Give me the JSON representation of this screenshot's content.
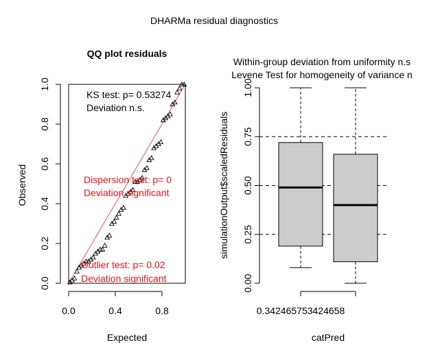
{
  "figure_title": "DHARMa residual diagnostics",
  "colors": {
    "ref_line": "#e0505a",
    "annotation": "#e8151b",
    "box_fill": "#cccccc",
    "text": "#000000"
  },
  "chart_data": [
    {
      "type": "scatter",
      "title": "QQ plot residuals",
      "xlabel": "Expected",
      "ylabel": "Observed",
      "xlim": [
        0,
        1
      ],
      "ylim": [
        0,
        1
      ],
      "x_ticks": [
        "0.0",
        "0.4",
        "0.8"
      ],
      "x_tick_values": [
        0.0,
        0.4,
        0.8
      ],
      "y_ticks": [
        "0.0",
        "0.2",
        "0.4",
        "0.6",
        "0.8",
        "1.0"
      ],
      "y_tick_values": [
        0.0,
        0.2,
        0.4,
        0.6,
        0.8,
        1.0
      ],
      "marker": "open-triangle",
      "reference_line": {
        "from": [
          0,
          0
        ],
        "to": [
          1,
          1
        ]
      },
      "annotations": [
        {
          "lines": [
            "KS test: p= 0.53274",
            "Deviation  n.s."
          ],
          "color": "black"
        },
        {
          "lines": [
            "Dispersion test: p= 0",
            "Deviation  significant"
          ],
          "color": "red"
        },
        {
          "lines": [
            "Outlier test: p= 0.02",
            "Deviation  significant"
          ],
          "color": "red"
        }
      ],
      "x": [
        0.01,
        0.03,
        0.05,
        0.07,
        0.09,
        0.11,
        0.13,
        0.15,
        0.17,
        0.19,
        0.21,
        0.23,
        0.25,
        0.27,
        0.29,
        0.31,
        0.33,
        0.35,
        0.37,
        0.39,
        0.41,
        0.43,
        0.45,
        0.47,
        0.49,
        0.51,
        0.53,
        0.55,
        0.57,
        0.59,
        0.61,
        0.63,
        0.65,
        0.67,
        0.69,
        0.71,
        0.73,
        0.75,
        0.77,
        0.79,
        0.81,
        0.83,
        0.85,
        0.87,
        0.89,
        0.91,
        0.93,
        0.95,
        0.97,
        0.99
      ],
      "y": [
        0.005,
        0.015,
        0.025,
        0.06,
        0.08,
        0.09,
        0.1,
        0.11,
        0.11,
        0.12,
        0.13,
        0.15,
        0.16,
        0.17,
        0.17,
        0.19,
        0.23,
        0.24,
        0.3,
        0.31,
        0.33,
        0.35,
        0.37,
        0.38,
        0.44,
        0.45,
        0.46,
        0.47,
        0.51,
        0.51,
        0.52,
        0.53,
        0.57,
        0.58,
        0.62,
        0.63,
        0.68,
        0.69,
        0.7,
        0.71,
        0.82,
        0.83,
        0.84,
        0.85,
        0.9,
        0.91,
        0.96,
        0.98,
        1.0,
        1.0
      ]
    },
    {
      "type": "box",
      "title": [
        "Within-group deviation from uniformity n.s",
        "Levene Test for homogeneity of variance n"
      ],
      "xlabel": "catPred",
      "ylabel": "simulationOutput$scaledResiduals",
      "ylim": [
        0,
        1
      ],
      "y_ticks": [
        "0.00",
        "0.25",
        "0.50",
        "0.75",
        "1.00"
      ],
      "y_tick_values": [
        0.0,
        0.25,
        0.5,
        0.75,
        1.0
      ],
      "x_tick_label": "0.342465753424658",
      "reference_lines": [
        0.25,
        0.5,
        0.75
      ],
      "boxes": [
        {
          "min": 0.08,
          "q1": 0.19,
          "median": 0.49,
          "q3": 0.72,
          "max": 1.0
        },
        {
          "min": 0.0,
          "q1": 0.11,
          "median": 0.4,
          "q3": 0.66,
          "max": 1.0
        }
      ]
    }
  ]
}
